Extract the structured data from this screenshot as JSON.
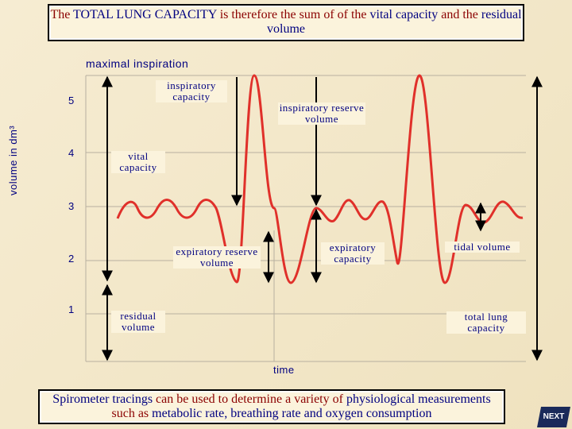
{
  "title": [
    {
      "text": "The",
      "tone": "r"
    },
    {
      "text": "TOTAL LUNG CAPACITY",
      "tone": "n"
    },
    {
      "text": "is therefore the sum of of the",
      "tone": "r"
    },
    {
      "text": "vital capacity",
      "tone": "n"
    },
    {
      "text": "and the",
      "tone": "r"
    },
    {
      "text": "residual volume",
      "tone": "n"
    }
  ],
  "diagram": {
    "top_label": "maximal inspiration",
    "y_axis_label": "volume in dm³",
    "y_ticks": [
      "5",
      "4",
      "3",
      "2",
      "1"
    ],
    "x_axis_label": "time",
    "labels": {
      "inspiratory_capacity": "inspiratory capacity",
      "inspiratory_reserve_volume": "inspiratory reserve volume",
      "vital_capacity": "vital capacity",
      "expiratory_reserve_volume": "expiratory reserve volume",
      "expiratory_capacity": "expiratory capacity",
      "tidal_volume": "tidal volume",
      "residual_volume": "residual volume",
      "total_lung_capacity": "total lung capacity"
    }
  },
  "caption": [
    {
      "text": "Spirometer tracings",
      "tone": "n"
    },
    {
      "text": "can be used to determine a variety of",
      "tone": "r"
    },
    {
      "text": "physiological measurements",
      "tone": "n"
    },
    {
      "text": "such as",
      "tone": "r"
    },
    {
      "text": "metabolic rate, breathing rate and oxygen consumption",
      "tone": "n"
    }
  ],
  "button": "NEXT"
}
